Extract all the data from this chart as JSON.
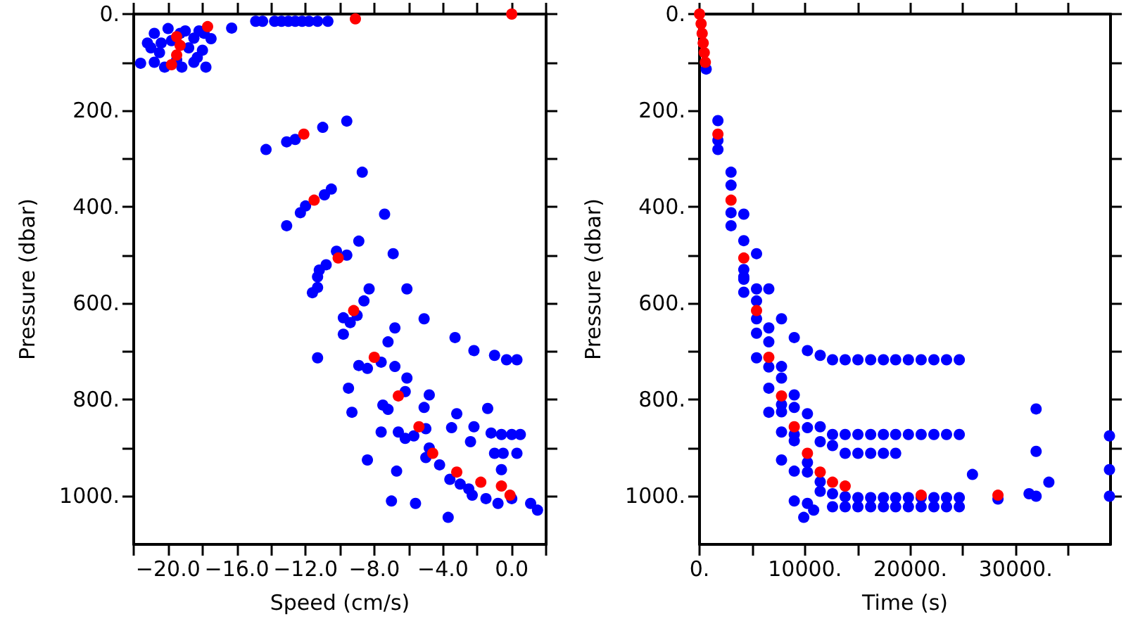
{
  "chart_data": [
    {
      "type": "scatter",
      "xlabel": "Speed (cm/s)",
      "ylabel": "Pressure (dbar)",
      "xlim": [
        -22,
        2
      ],
      "xticks": [
        {
          "value": -22,
          "label": null
        },
        {
          "value": -20,
          "label": "−20.0"
        },
        {
          "value": -18,
          "label": null
        },
        {
          "value": -16,
          "label": "−16.0"
        },
        {
          "value": -14,
          "label": null
        },
        {
          "value": -12,
          "label": "−12.0"
        },
        {
          "value": -10,
          "label": null
        },
        {
          "value": -8,
          "label": "−8.0"
        },
        {
          "value": -6,
          "label": null
        },
        {
          "value": -4,
          "label": "−4.0"
        },
        {
          "value": -2,
          "label": null
        },
        {
          "value": 0,
          "label": "0.0"
        },
        {
          "value": 2,
          "label": null
        }
      ],
      "ylim": [
        1100,
        0
      ],
      "yticks": [
        {
          "value": 0,
          "label": "0."
        },
        {
          "value": 100,
          "label": null
        },
        {
          "value": 200,
          "label": "200."
        },
        {
          "value": 300,
          "label": null
        },
        {
          "value": 400,
          "label": "400."
        },
        {
          "value": 500,
          "label": null
        },
        {
          "value": 600,
          "label": "600."
        },
        {
          "value": 700,
          "label": null
        },
        {
          "value": 800,
          "label": "800."
        },
        {
          "value": 900,
          "label": null
        },
        {
          "value": 1000,
          "label": "1000."
        }
      ],
      "grid": false,
      "marker": "circle",
      "series": [
        {
          "color": "#0000ff",
          "x": [
            -21.6,
            -21.2,
            -20.8,
            -20.5,
            -20.2,
            -20,
            -19.8,
            -19.5,
            -19.2,
            -19,
            -18.8,
            -18.5,
            -18.5,
            -18.2,
            -18,
            -17.8,
            -17.5,
            -20.8,
            -21,
            -19.3,
            -18.3,
            -17.9,
            -20.4,
            -16.3,
            -14.9,
            -14.5,
            -13.8,
            -13.4,
            -13,
            -12.6,
            -12.2,
            -11.8,
            -11.3,
            -10.7,
            -13.1,
            -12.6,
            -11,
            -9.6,
            -14.3,
            -12.3,
            -13.1,
            -10.5,
            -10.9,
            -8.7,
            -7.4,
            -12,
            -11.2,
            -10.8,
            -9.6,
            -10.2,
            -8.9,
            -6.9,
            -11.3,
            -11.3,
            -11.6,
            -8.3,
            -6.1,
            -8.6,
            -9.8,
            -9.4,
            -9,
            -9.8,
            -5.1,
            -6.8,
            -7.2,
            -3.3,
            -2.2,
            -1,
            -0.3,
            0.3,
            -11.3,
            -8.9,
            -8.4,
            -7.6,
            -6.8,
            -6.1,
            -7.5,
            -7.2,
            -6.2,
            -4.8,
            -5.1,
            -9.5,
            -9.3,
            -6.6,
            -6.2,
            -5.7,
            -5,
            -7.6,
            -3.2,
            -3.5,
            -2.2,
            -1.4,
            -2.4,
            -1.2,
            -0.6,
            0,
            0.5,
            -1,
            -0.5,
            0.3,
            -0.6,
            -5,
            -4.2,
            -4.8,
            -3.6,
            -3,
            -2.5,
            -2.3,
            -1.5,
            -0.8,
            0,
            1.1,
            1.5,
            -3.7,
            -7,
            -5.6,
            -8.4,
            -6.7
          ],
          "values": [
            102,
            60,
            40,
            80,
            110,
            30,
            55,
            95,
            110,
            35,
            70,
            50,
            100,
            35,
            75,
            110,
            51,
            100,
            70,
            40,
            90,
            40,
            60,
            29,
            15,
            15,
            15,
            15,
            15,
            15,
            15,
            15,
            15,
            15,
            265,
            260,
            235,
            222,
            281,
            412,
            439,
            363,
            375,
            328,
            415,
            398,
            531,
            520,
            500,
            492,
            471,
            497,
            567,
            545,
            578,
            570,
            570,
            595,
            630,
            640,
            625,
            664,
            632,
            651,
            680,
            671,
            698,
            708,
            717,
            717,
            713,
            729,
            735,
            722,
            731,
            755,
            811,
            820,
            783,
            790,
            816,
            776,
            826,
            867,
            880,
            875,
            860,
            867,
            829,
            858,
            856,
            818,
            887,
            869,
            872,
            872,
            872,
            911,
            911,
            911,
            945,
            920,
            935,
            900,
            965,
            975,
            985,
            998,
            1005,
            1015,
            1005,
            1015,
            1029,
            1044,
            1010,
            1015,
            925,
            948
          ]
        },
        {
          "color": "#ff0000",
          "x": [
            -19.5,
            -19.3,
            -19.5,
            -19.8,
            -17.7,
            -9.1,
            0,
            -12.1,
            -11.5,
            -10.1,
            -9.2,
            -8,
            -6.6,
            -5.4,
            -4.6,
            -3.2,
            -1.8,
            -0.6,
            -0.1
          ],
          "values": [
            47,
            65,
            85,
            105,
            26,
            10,
            0,
            249,
            386,
            506,
            615,
            712,
            792,
            856,
            911,
            950,
            971,
            979,
            998
          ]
        }
      ]
    },
    {
      "type": "scatter",
      "xlabel": "Time (s)",
      "ylabel": "Pressure (dbar)",
      "xlim": [
        0,
        39000
      ],
      "xticks": [
        {
          "value": 0,
          "label": "0."
        },
        {
          "value": 5000,
          "label": null
        },
        {
          "value": 10000,
          "label": "10000."
        },
        {
          "value": 15000,
          "label": null
        },
        {
          "value": 20000,
          "label": "20000."
        },
        {
          "value": 25000,
          "label": null
        },
        {
          "value": 30000,
          "label": "30000."
        },
        {
          "value": 35000,
          "label": null
        }
      ],
      "ylim": [
        1100,
        0
      ],
      "yticks": [
        {
          "value": 0,
          "label": "0."
        },
        {
          "value": 100,
          "label": null
        },
        {
          "value": 200,
          "label": "200."
        },
        {
          "value": 300,
          "label": null
        },
        {
          "value": 400,
          "label": "400."
        },
        {
          "value": 500,
          "label": null
        },
        {
          "value": 600,
          "label": "600."
        },
        {
          "value": 700,
          "label": null
        },
        {
          "value": 800,
          "label": "800."
        },
        {
          "value": 900,
          "label": null
        },
        {
          "value": 1000,
          "label": "1000."
        }
      ],
      "grid": false,
      "marker": "circle",
      "series": [
        {
          "color": "#0000ff",
          "x": [
            630,
            1745,
            1745,
            1745,
            2990,
            2990,
            2990,
            2990,
            4200,
            4200,
            5410,
            4200,
            4200,
            4200,
            4200,
            5410,
            6575,
            5410,
            5410,
            5410,
            6575,
            6575,
            7780,
            8990,
            10240,
            11450,
            12620,
            13820,
            15030,
            16240,
            17450,
            18610,
            19820,
            21030,
            22240,
            23440,
            24650,
            5410,
            6575,
            7780,
            7780,
            7780,
            7780,
            8990,
            8990,
            6575,
            6575,
            8990,
            8990,
            10240,
            10240,
            11450,
            7780,
            11450,
            12620,
            12620,
            13820,
            15030,
            16240,
            17450,
            18610,
            19820,
            21030,
            22240,
            23440,
            24650,
            13820,
            15030,
            16240,
            17450,
            18610,
            7780,
            8990,
            10240,
            10240,
            11450,
            11450,
            12620,
            13820,
            15030,
            16240,
            17450,
            18610,
            19820,
            21030,
            22240,
            23440,
            24650,
            12620,
            13820,
            15030,
            16240,
            17450,
            18610,
            19820,
            21030,
            22240,
            23440,
            24650,
            8990,
            10240,
            10830,
            9890,
            25900,
            28320,
            31940,
            31940,
            33150,
            31270,
            31940,
            38900,
            38900,
            38900
          ],
          "values": [
            114,
            221,
            281,
            262,
            328,
            355,
            412,
            439,
            415,
            470,
            497,
            530,
            550,
            545,
            577,
            570,
            570,
            595,
            632,
            662,
            651,
            680,
            632,
            671,
            698,
            708,
            717,
            717,
            717,
            717,
            717,
            717,
            717,
            717,
            717,
            717,
            717,
            713,
            732,
            731,
            755,
            810,
            825,
            790,
            816,
            776,
            826,
            872,
            885,
            829,
            858,
            856,
            867,
            887,
            895,
            872,
            872,
            872,
            872,
            872,
            872,
            872,
            872,
            872,
            872,
            872,
            911,
            911,
            911,
            911,
            911,
            925,
            948,
            930,
            950,
            970,
            990,
            995,
            1001,
            1003,
            1003,
            1003,
            1003,
            1003,
            1003,
            1003,
            1003,
            1003,
            1022,
            1022,
            1022,
            1022,
            1022,
            1022,
            1022,
            1022,
            1022,
            1022,
            1022,
            1010,
            1015,
            1029,
            1044,
            955,
            1006,
            819,
            907,
            971,
            995,
            1000,
            875,
            945,
            1000
          ]
        },
        {
          "color": "#ff0000",
          "x": [
            0,
            150,
            250,
            350,
            450,
            550,
            1745,
            2990,
            4200,
            5410,
            6575,
            7780,
            8990,
            10240,
            11450,
            12620,
            13820,
            21030,
            28320
          ],
          "values": [
            0,
            20,
            40,
            60,
            80,
            100,
            249,
            386,
            506,
            615,
            712,
            792,
            856,
            911,
            950,
            971,
            979,
            998,
            998
          ]
        }
      ]
    }
  ]
}
